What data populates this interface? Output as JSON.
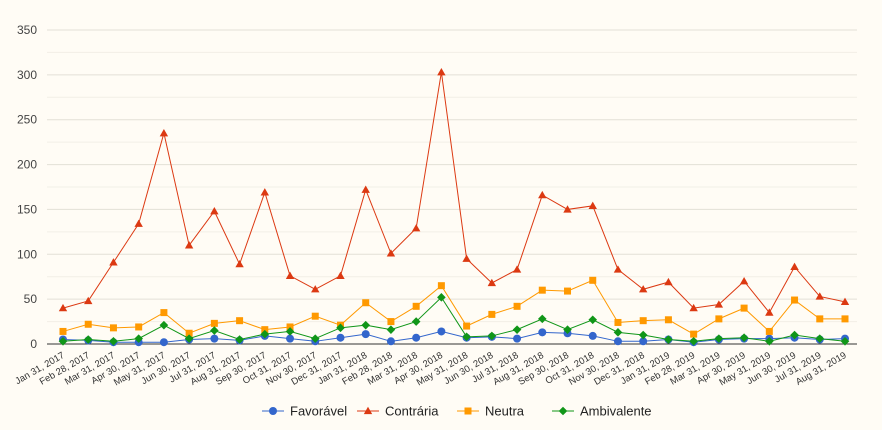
{
  "chart_data": {
    "type": "line",
    "title": "",
    "xlabel": "",
    "ylabel": "",
    "ylim": [
      0,
      350
    ],
    "yticks": [
      0,
      50,
      100,
      150,
      200,
      250,
      300,
      350
    ],
    "grid": true,
    "legend": "bottom",
    "categories": [
      "Jan 31, 2017",
      "Feb 28, 2017",
      "Mar 31, 2017",
      "Apr 30, 2017",
      "May 31, 2017",
      "Jun 30, 2017",
      "Jul 31, 2017",
      "Aug 31, 2017",
      "Sep 30, 2017",
      "Oct 31, 2017",
      "Nov 30, 2017",
      "Dec 31, 2017",
      "Jan 31, 2018",
      "Feb 28, 2018",
      "Mar 31, 2018",
      "Apr 30, 2018",
      "May 31, 2018",
      "Jun 30, 2018",
      "Jul 31, 2018",
      "Aug 31, 2018",
      "Sep 30, 2018",
      "Oct 31, 2018",
      "Nov 30, 2018",
      "Dec 31, 2018",
      "Jan 31, 2019",
      "Feb 28, 2019",
      "Mar 31, 2019",
      "Apr 30, 2019",
      "May 31, 2019",
      "Jun 30, 2019",
      "Jul 31, 2019",
      "Aug 31, 2019"
    ],
    "series": [
      {
        "name": "Favorável",
        "color": "#3366cc",
        "marker": "circle",
        "values": [
          5,
          4,
          2,
          2,
          2,
          5,
          6,
          4,
          9,
          6,
          3,
          7,
          11,
          3,
          7,
          14,
          7,
          8,
          6,
          13,
          12,
          9,
          3,
          3,
          5,
          2,
          5,
          6,
          6,
          7,
          5,
          6
        ]
      },
      {
        "name": "Contrária",
        "color": "#dc3912",
        "marker": "triangle",
        "values": [
          40,
          48,
          91,
          134,
          235,
          110,
          148,
          89,
          169,
          76,
          61,
          76,
          172,
          101,
          129,
          303,
          95,
          68,
          83,
          166,
          150,
          154,
          83,
          61,
          69,
          40,
          44,
          70,
          35,
          86,
          53,
          47
        ]
      },
      {
        "name": "Neutra",
        "color": "#ff9900",
        "marker": "square",
        "values": [
          14,
          22,
          18,
          19,
          35,
          12,
          23,
          26,
          16,
          19,
          31,
          21,
          46,
          25,
          42,
          65,
          20,
          33,
          42,
          60,
          59,
          71,
          24,
          26,
          27,
          11,
          28,
          40,
          14,
          49,
          28,
          28
        ]
      },
      {
        "name": "Ambivalente",
        "color": "#109618",
        "marker": "diamond",
        "values": [
          3,
          5,
          3,
          6,
          21,
          6,
          15,
          5,
          11,
          14,
          6,
          18,
          21,
          16,
          25,
          52,
          8,
          9,
          16,
          28,
          16,
          27,
          13,
          10,
          5,
          3,
          6,
          7,
          3,
          10,
          6,
          3
        ]
      }
    ]
  }
}
